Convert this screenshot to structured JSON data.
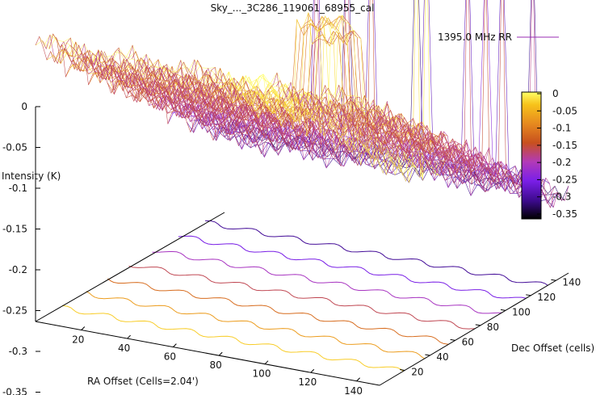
{
  "chart_data": {
    "type": "surface",
    "title": "Sky_..._3C286_119061_68955_cal",
    "legend_label": "1395.0 MHz RR",
    "legend_color": "#9a2cb3",
    "zlabel": "Intensity (K)",
    "xlabel": "RA Offset (Cells=2.04')",
    "ylabel": "Dec Offset (cells)",
    "z_ticks": [
      "0",
      "-0.05",
      "-0.1",
      "-0.15",
      "-0.2",
      "-0.25",
      "-0.3",
      "-0.35"
    ],
    "x_ticks": [
      "20",
      "40",
      "60",
      "80",
      "100",
      "120",
      "140"
    ],
    "y_ticks": [
      "20",
      "40",
      "60",
      "80",
      "100",
      "120",
      "140"
    ],
    "colorbar_ticks": [
      "0",
      "-0.05",
      "-0.1",
      "-0.15",
      "-0.2",
      "-0.25",
      "-0.3",
      "-0.35"
    ],
    "colorbar_range": [
      -0.35,
      0
    ],
    "xlim": [
      0,
      150
    ],
    "ylim": [
      0,
      150
    ],
    "zlim": [
      -0.35,
      0
    ],
    "colormap": [
      "#000000",
      "#3b0a8a",
      "#7a1fe8",
      "#b23ab8",
      "#c8501e",
      "#e6891f",
      "#f7c21a",
      "#ffff66"
    ],
    "surface_trend": "intensity ~0 at low Dec, decreasing in steps to about -0.3 at high Dec; narrow positive spikes along the high-Dec edge; a raised block near RA 80-100, Dec 60-80",
    "grid": false
  }
}
